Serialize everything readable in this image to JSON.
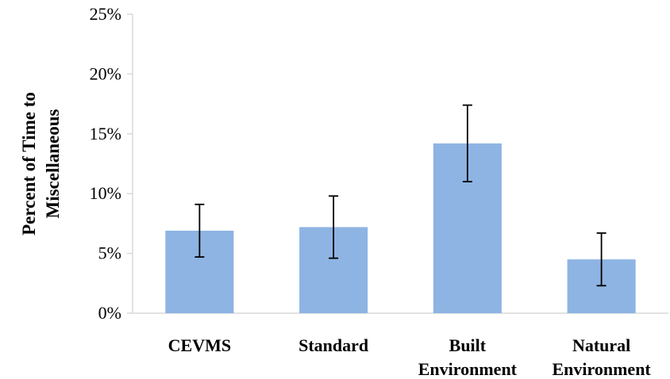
{
  "chart_data": {
    "type": "bar",
    "title": "",
    "xlabel": "",
    "ylabel_lines": [
      "Percent of Time to",
      "Miscellaneous"
    ],
    "categories": [
      [
        "CEVMS"
      ],
      [
        "Standard"
      ],
      [
        "Built",
        "Environment"
      ],
      [
        "Natural",
        "Environment"
      ]
    ],
    "values": [
      6.9,
      7.2,
      14.2,
      4.5
    ],
    "error_low": [
      4.7,
      4.6,
      11.0,
      2.3
    ],
    "error_high": [
      9.1,
      9.8,
      17.4,
      6.7
    ],
    "ylim": [
      0,
      25
    ],
    "yticks": [
      0,
      5,
      10,
      15,
      20,
      25
    ],
    "ytick_labels": [
      "0%",
      "5%",
      "10%",
      "15%",
      "20%",
      "25%"
    ],
    "grid": false,
    "bar_color": "#8EB4E3",
    "error_bar_color": "#000000"
  }
}
